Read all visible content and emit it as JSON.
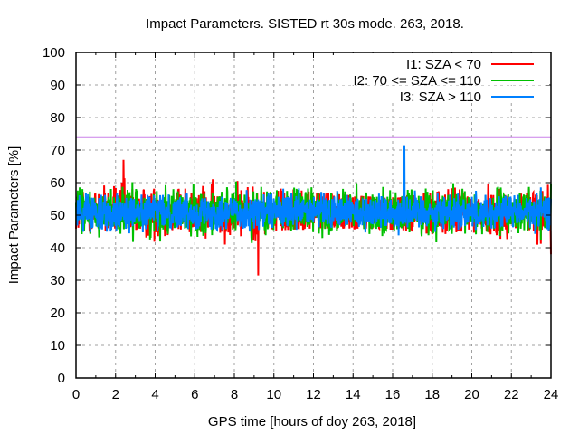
{
  "chart_data": {
    "type": "line",
    "title": "Impact Parameters. SISTED rt 30s mode. 263, 2018.",
    "xlabel": "GPS time [hours of doy 263, 2018]",
    "ylabel": "Impact Parameters [%]",
    "xlim": [
      0,
      24
    ],
    "ylim": [
      0,
      100
    ],
    "xticks": [
      "0",
      "2",
      "4",
      "6",
      "8",
      "10",
      "12",
      "14",
      "16",
      "18",
      "20",
      "22",
      "24"
    ],
    "yticks": [
      "0",
      "10",
      "20",
      "30",
      "40",
      "50",
      "60",
      "70",
      "80",
      "90",
      "100"
    ],
    "grid": true,
    "legend_position": "top-right",
    "threshold": {
      "value": 74,
      "color": "#9400d3"
    },
    "series": [
      {
        "name": "I1: SZA < 70",
        "color": "#ff0000",
        "sampling_s": 30,
        "mean": 51,
        "noise_amplitude": 7,
        "extremes": [
          {
            "x": 2.4,
            "y": 34
          },
          {
            "x": 9.2,
            "y": 31.5
          },
          {
            "x": 2.4,
            "y": 67
          },
          {
            "x": 24,
            "y": 38
          }
        ],
        "bin_hours": [
          0,
          2,
          4,
          6,
          8,
          10,
          12,
          14,
          16,
          18,
          20,
          22,
          24
        ],
        "bin_min": [
          39,
          34,
          40,
          42,
          31.5,
          44,
          45,
          45,
          45,
          43,
          43,
          40,
          38
        ],
        "bin_max": [
          64,
          67,
          66,
          63,
          63,
          60,
          58,
          57,
          56,
          58,
          61,
          62,
          61
        ]
      },
      {
        "name": "I2: 70 <= SZA <= 110",
        "color": "#00c000",
        "sampling_s": 30,
        "mean": 51,
        "noise_amplitude": 6,
        "bin_hours": [
          0,
          2,
          4,
          6,
          8,
          10,
          12,
          14,
          16,
          18,
          20,
          22,
          24
        ],
        "bin_min": [
          38,
          39,
          40,
          40,
          40,
          38,
          40,
          35,
          38,
          38,
          37,
          38,
          42
        ],
        "bin_max": [
          60,
          62,
          62,
          64,
          64,
          62,
          60,
          62,
          60,
          64,
          65,
          62,
          61
        ]
      },
      {
        "name": "I3: SZA > 110",
        "color": "#0080ff",
        "sampling_s": 30,
        "mean": 51,
        "noise_amplitude": 5,
        "extremes": [
          {
            "x": 16.6,
            "y": 71.5
          }
        ],
        "bin_hours": [
          0,
          2,
          4,
          6,
          8,
          10,
          12,
          14,
          16,
          18,
          20,
          22,
          24
        ],
        "bin_min": [
          44,
          43,
          44,
          45,
          44,
          42,
          40,
          38,
          37,
          36,
          38,
          38,
          42
        ],
        "bin_max": [
          58,
          58,
          57,
          58,
          60,
          62,
          64,
          65,
          71.5,
          66,
          64,
          63,
          60
        ]
      }
    ]
  }
}
